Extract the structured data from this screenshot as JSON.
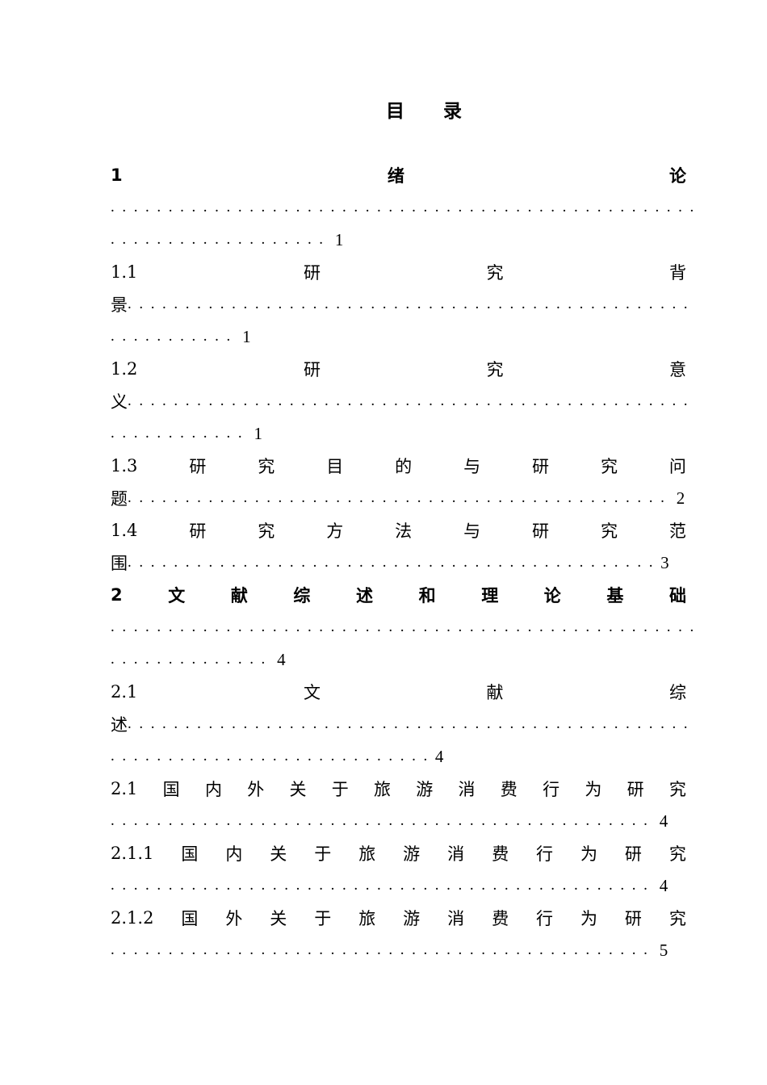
{
  "title": [
    "目",
    "录"
  ],
  "toc": {
    "lines": [
      {
        "style": "just bold",
        "tokens": [
          "1",
          "绪",
          "论"
        ]
      },
      {
        "style": "left",
        "tokens": [
          "..................................................."
        ]
      },
      {
        "style": "left",
        "tokens": [
          "...................",
          " 1"
        ]
      },
      {
        "style": "just",
        "tokens": [
          "1.1",
          "研",
          "究",
          "背"
        ]
      },
      {
        "style": "left",
        "tokens": [
          "景",
          "................................................."
        ]
      },
      {
        "style": "left",
        "tokens": [
          "...........",
          " 1"
        ]
      },
      {
        "style": "just",
        "tokens": [
          "1.2",
          "研",
          "究",
          "意"
        ]
      },
      {
        "style": "left",
        "tokens": [
          "义",
          "................................................."
        ]
      },
      {
        "style": "left",
        "tokens": [
          "............",
          " 1"
        ]
      },
      {
        "style": "just",
        "tokens": [
          "1.3",
          "研",
          "究",
          "目",
          "的",
          "与",
          "研",
          "究",
          "问"
        ]
      },
      {
        "style": "left",
        "tokens": [
          "题",
          "...............................................",
          " 2"
        ]
      },
      {
        "style": "just",
        "tokens": [
          "1.4",
          "研",
          "究",
          "方",
          "法",
          "与",
          "研",
          "究",
          "范"
        ]
      },
      {
        "style": "left",
        "tokens": [
          "围",
          "..............................................",
          "3"
        ]
      },
      {
        "style": "just bold",
        "tokens": [
          "2",
          "文",
          "献",
          "综",
          "述",
          "和",
          "理",
          "论",
          "基",
          "础"
        ]
      },
      {
        "style": "left",
        "tokens": [
          "..................................................."
        ]
      },
      {
        "style": "left",
        "tokens": [
          "..............",
          " 4"
        ]
      },
      {
        "style": "just",
        "tokens": [
          "2.1",
          "文",
          "献",
          "综"
        ]
      },
      {
        "style": "left",
        "tokens": [
          "述",
          "................................................."
        ]
      },
      {
        "style": "left",
        "tokens": [
          "............................",
          "4"
        ]
      },
      {
        "style": "just",
        "tokens": [
          "2.1",
          "国",
          "内",
          "外",
          "关",
          "于",
          "旅",
          "游",
          "消",
          "费",
          "行",
          "为",
          "研",
          "究"
        ]
      },
      {
        "style": "left",
        "tokens": [
          "...............................................",
          " 4"
        ]
      },
      {
        "style": "just",
        "tokens": [
          "2.1.1",
          "国",
          "内",
          "关",
          "于",
          "旅",
          "游",
          "消",
          "费",
          "行",
          "为",
          "研",
          "究"
        ]
      },
      {
        "style": "left",
        "tokens": [
          "...............................................",
          " 4"
        ]
      },
      {
        "style": "just",
        "tokens": [
          "2.1.2",
          "国",
          "外",
          "关",
          "于",
          "旅",
          "游",
          "消",
          "费",
          "行",
          "为",
          "研",
          "究"
        ]
      },
      {
        "style": "left",
        "tokens": [
          "...............................................",
          " 5"
        ]
      }
    ]
  }
}
